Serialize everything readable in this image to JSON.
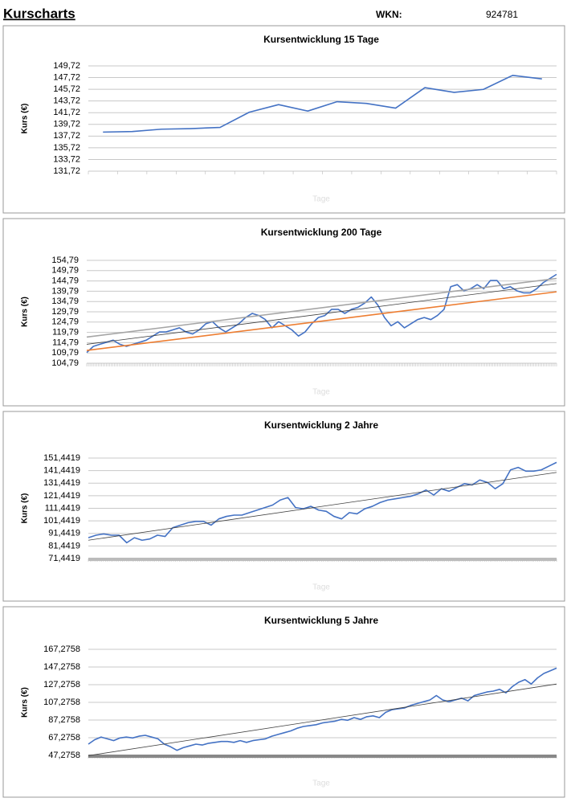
{
  "header": {
    "title": "Kurscharts",
    "wkn_label": "WKN:",
    "wkn": "924781"
  },
  "chart_data": [
    {
      "type": "line",
      "title": "Kursentwicklung 15 Tage",
      "y_label": "Kurs (€)",
      "x_label": "Tage",
      "ylim": [
        131.72,
        149.72
      ],
      "yticks": [
        {
          "value": 131.72,
          "label": "131,72"
        },
        {
          "value": 133.72,
          "label": "133,72"
        },
        {
          "value": 135.72,
          "label": "135,72"
        },
        {
          "value": 137.72,
          "label": "137,72"
        },
        {
          "value": 139.72,
          "label": "139,72"
        },
        {
          "value": 141.72,
          "label": "141,72"
        },
        {
          "value": 143.72,
          "label": "143,72"
        },
        {
          "value": 145.72,
          "label": "145,72"
        },
        {
          "value": 147.72,
          "label": "147,72"
        },
        {
          "value": 149.72,
          "label": "149,72"
        }
      ],
      "grid": true,
      "series": [
        {
          "color": "#4472c4",
          "values": [
            138.4,
            138.5,
            138.9,
            139.0,
            139.2,
            141.8,
            143.1,
            142.0,
            143.6,
            143.3,
            142.5,
            146.0,
            145.2,
            145.7,
            148.1,
            147.5
          ]
        }
      ]
    },
    {
      "type": "line",
      "title": "Kursentwicklung 200 Tage",
      "y_label": "Kurs (€)",
      "x_label": "Tage",
      "ylim": [
        104.79,
        154.79
      ],
      "yticks": [
        {
          "value": 104.79,
          "label": "104,79"
        },
        {
          "value": 109.79,
          "label": "109,79"
        },
        {
          "value": 114.79,
          "label": "114,79"
        },
        {
          "value": 119.79,
          "label": "119,79"
        },
        {
          "value": 124.79,
          "label": "124,79"
        },
        {
          "value": 129.79,
          "label": "129,79"
        },
        {
          "value": 134.79,
          "label": "134,79"
        },
        {
          "value": 139.79,
          "label": "139,79"
        },
        {
          "value": 144.79,
          "label": "144,79"
        },
        {
          "value": 149.79,
          "label": "149,79"
        },
        {
          "value": 154.79,
          "label": "154,79"
        }
      ],
      "grid": true,
      "series": [
        {
          "color": "#4472c4",
          "values": [
            110,
            113,
            114,
            115,
            116,
            114,
            113,
            114,
            115,
            116,
            118,
            120,
            120,
            121,
            122,
            120,
            119,
            121,
            124,
            125,
            122,
            120,
            122,
            124,
            127,
            129,
            128,
            126,
            122,
            125,
            123,
            121,
            118,
            120,
            124,
            127,
            128,
            131,
            131,
            129,
            131,
            132,
            134,
            137,
            133,
            127,
            123,
            125,
            122,
            124,
            126,
            127,
            126,
            128,
            131,
            142,
            143,
            140,
            141,
            143,
            141,
            145,
            145,
            141,
            142,
            140,
            139,
            139,
            141,
            144,
            146,
            148
          ]
        },
        {
          "color": "#a5a5a5",
          "x": [
            0,
            71
          ],
          "values": [
            117.5,
            146
          ]
        },
        {
          "color": "#404040",
          "x": [
            0,
            71
          ],
          "values": [
            114,
            143.5
          ]
        },
        {
          "color": "#ed7d31",
          "x": [
            0,
            71
          ],
          "values": [
            111,
            139.5
          ]
        }
      ]
    },
    {
      "type": "line",
      "title": "Kursentwicklung 2 Jahre",
      "y_label": "Kurs (€)",
      "x_label": "Tage",
      "ylim": [
        71.4419,
        151.4419
      ],
      "yticks": [
        {
          "value": 71.4419,
          "label": "71,4419"
        },
        {
          "value": 81.4419,
          "label": "81,4419"
        },
        {
          "value": 91.4419,
          "label": "91,4419"
        },
        {
          "value": 101.4419,
          "label": "101,4419"
        },
        {
          "value": 111.4419,
          "label": "111,4419"
        },
        {
          "value": 121.4419,
          "label": "121,4419"
        },
        {
          "value": 131.4419,
          "label": "131,4419"
        },
        {
          "value": 141.4419,
          "label": "141,4419"
        },
        {
          "value": 151.4419,
          "label": "151,4419"
        }
      ],
      "grid": true,
      "series": [
        {
          "color": "#4472c4",
          "values": [
            88,
            90,
            91,
            90,
            90,
            84,
            88,
            86,
            87,
            90,
            89,
            96,
            98,
            100,
            101,
            101,
            98,
            103,
            105,
            106,
            106,
            108,
            110,
            112,
            114,
            118,
            120,
            112,
            111,
            113,
            110,
            109,
            105,
            103,
            108,
            107,
            111,
            113,
            116,
            118,
            119,
            120,
            121,
            123,
            126,
            122,
            127,
            125,
            128,
            131,
            130,
            134,
            132,
            127,
            131,
            142,
            144,
            141,
            141,
            142,
            145,
            148
          ]
        },
        {
          "color": "#404040",
          "x": [
            0,
            61
          ],
          "values": [
            86,
            140
          ]
        }
      ]
    },
    {
      "type": "line",
      "title": "Kursentwicklung 5 Jahre",
      "y_label": "Kurs (€)",
      "x_label": "Tage",
      "ylim": [
        47.2758,
        167.2758
      ],
      "yticks": [
        {
          "value": 47.2758,
          "label": "47,2758"
        },
        {
          "value": 67.2758,
          "label": "67,2758"
        },
        {
          "value": 87.2758,
          "label": "87,2758"
        },
        {
          "value": 107.2758,
          "label": "107,2758"
        },
        {
          "value": 127.2758,
          "label": "127,2758"
        },
        {
          "value": 147.2758,
          "label": "147,2758"
        },
        {
          "value": 167.2758,
          "label": "167,2758"
        }
      ],
      "grid": true,
      "series": [
        {
          "color": "#4472c4",
          "values": [
            60,
            65,
            68,
            66,
            64,
            67,
            68,
            67,
            69,
            70,
            68,
            66,
            60,
            57,
            53,
            56,
            58,
            60,
            59,
            61,
            62,
            63,
            63,
            62,
            64,
            62,
            64,
            65,
            66,
            69,
            71,
            73,
            75,
            78,
            80,
            81,
            82,
            84,
            85,
            86,
            88,
            87,
            90,
            88,
            91,
            92,
            90,
            96,
            99,
            100,
            101,
            104,
            106,
            108,
            110,
            115,
            110,
            108,
            110,
            112,
            109,
            115,
            117,
            119,
            120,
            122,
            118,
            125,
            130,
            133,
            128,
            135,
            140,
            143,
            146
          ]
        },
        {
          "color": "#404040",
          "x": [
            0,
            74
          ],
          "values": [
            47,
            128
          ]
        }
      ]
    }
  ]
}
